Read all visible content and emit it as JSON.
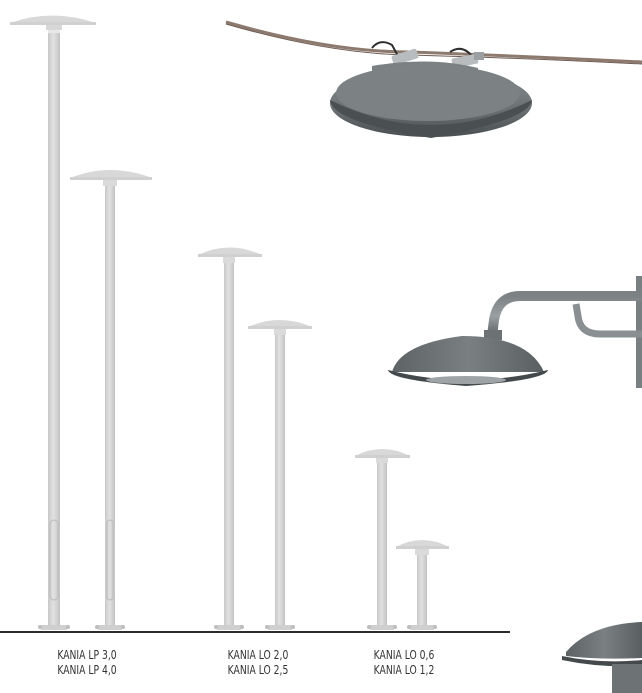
{
  "groups": [
    {
      "lines": [
        "KANIA LP 3,0",
        "KANIA LP 4,0"
      ]
    },
    {
      "lines": [
        "KANIA LO 2,0",
        "KANIA LO 2,5"
      ]
    },
    {
      "lines": [
        "KANIA LO 0,6",
        "KANIA LO 1,2"
      ]
    }
  ],
  "colors": {
    "pole": "#d6d6d6",
    "pole_shade": "#c4c4c4",
    "lamp_body": "#6c7274",
    "lamp_dark": "#4b5052",
    "ground": "#2b2b2b",
    "cable": "#8d7a6e"
  }
}
